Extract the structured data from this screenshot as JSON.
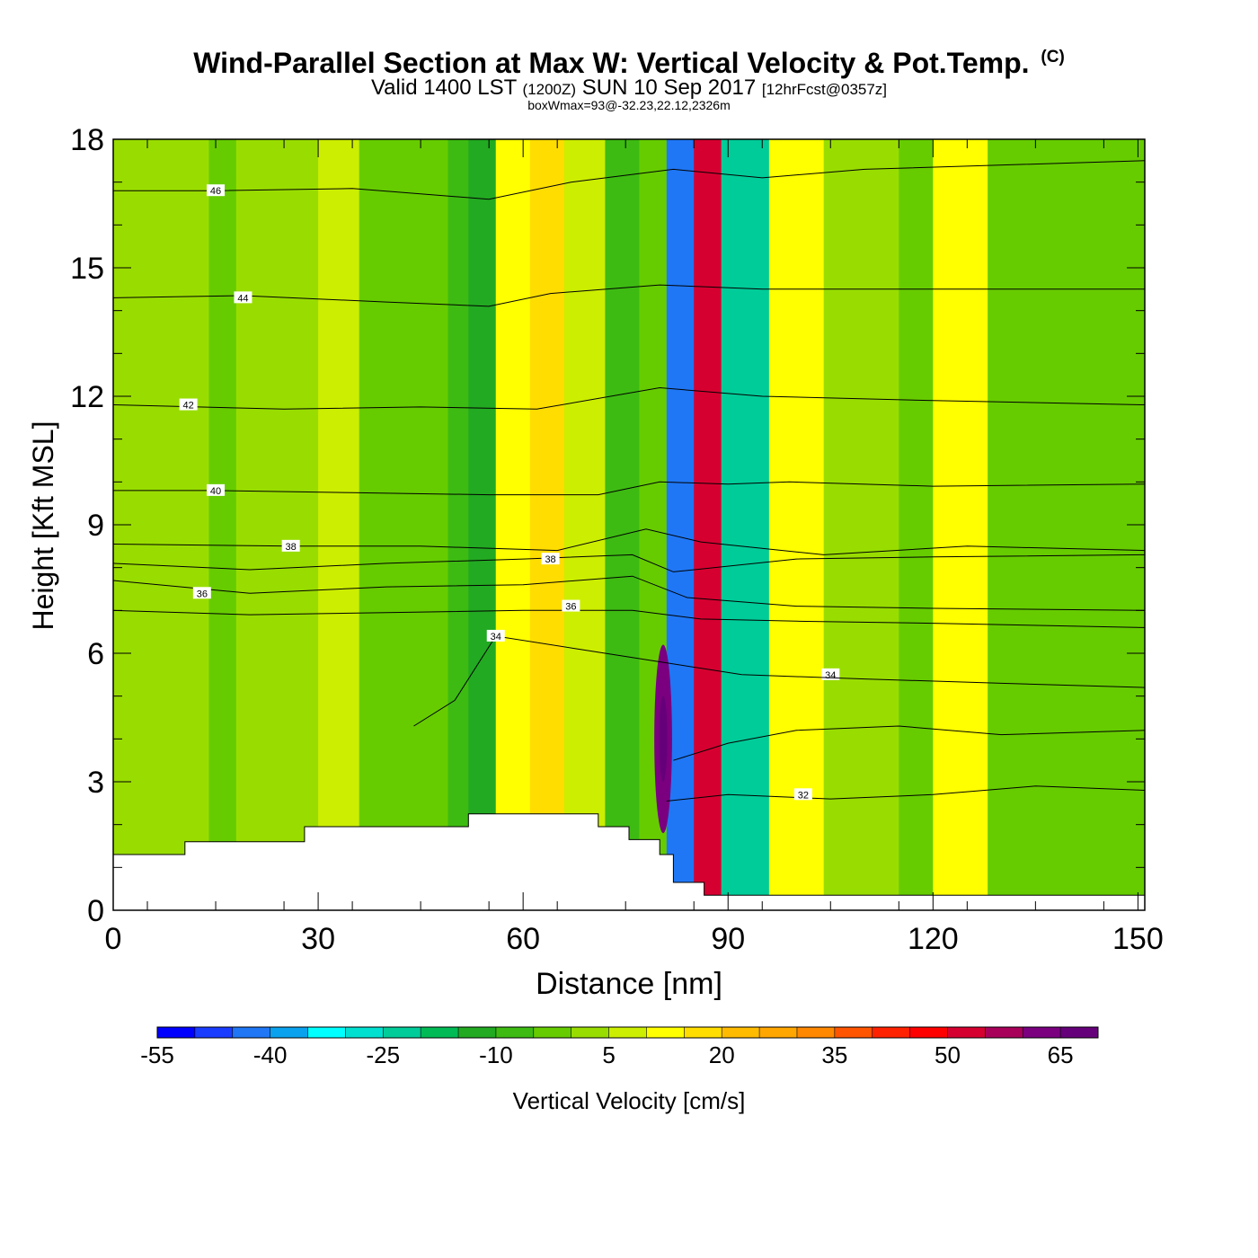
{
  "title": "Wind-Parallel Section at Max W: Vertical Velocity & Pot.Temp.",
  "copyright_mark": "(C)",
  "subtitle": {
    "valid": "Valid 1400 LST",
    "zulu": "(1200Z)",
    "date": "SUN 10 Sep 2017",
    "forecast": "[12hrFcst@0357z]"
  },
  "info_line": "boxWmax=93@-32.23,22.12,2326m",
  "chart_data": {
    "type": "heatmap",
    "xlabel": "Distance [nm]",
    "ylabel": "Height [Kft MSL]",
    "xlim": [
      0,
      151
    ],
    "ylim": [
      0,
      18
    ],
    "x_ticks": [
      "0",
      "30",
      "60",
      "90",
      "120",
      "150"
    ],
    "y_ticks": [
      "0",
      "3",
      "6",
      "9",
      "12",
      "15",
      "18"
    ],
    "x_tick_values": [
      0,
      30,
      60,
      90,
      120,
      150
    ],
    "y_tick_values": [
      0,
      3,
      6,
      9,
      12,
      15,
      18
    ],
    "terrain": [
      [
        0,
        1.3
      ],
      [
        10.5,
        1.3
      ],
      [
        10.5,
        1.6
      ],
      [
        28,
        1.6
      ],
      [
        28,
        1.95
      ],
      [
        52,
        1.95
      ],
      [
        52,
        2.25
      ],
      [
        71,
        2.25
      ],
      [
        71,
        1.95
      ],
      [
        75.5,
        1.95
      ],
      [
        75.5,
        1.65
      ],
      [
        80,
        1.65
      ],
      [
        80,
        1.3
      ],
      [
        82,
        1.3
      ],
      [
        82,
        0.65
      ],
      [
        86.5,
        0.65
      ],
      [
        86.5,
        0.35
      ],
      [
        151,
        0.35
      ]
    ],
    "field_bands": [
      {
        "x": [
          0,
          14
        ],
        "value": 0
      },
      {
        "x": [
          14,
          18
        ],
        "value": -5
      },
      {
        "x": [
          18,
          30
        ],
        "value": 2
      },
      {
        "x": [
          30,
          36
        ],
        "value": 8
      },
      {
        "x": [
          36,
          49
        ],
        "value": -3
      },
      {
        "x": [
          49,
          52
        ],
        "value": -10
      },
      {
        "x": [
          52,
          56
        ],
        "value": -15
      },
      {
        "x": [
          56,
          61
        ],
        "value": 10
      },
      {
        "x": [
          61,
          66
        ],
        "value": 18
      },
      {
        "x": [
          66,
          72
        ],
        "value": 9
      },
      {
        "x": [
          72,
          77
        ],
        "value": -10
      },
      {
        "x": [
          77,
          81
        ],
        "value": -2
      },
      {
        "x": [
          81,
          85
        ],
        "value": -45
      },
      {
        "x": [
          85,
          89
        ],
        "value": 50
      },
      {
        "x": [
          89,
          96
        ],
        "value": -22
      },
      {
        "x": [
          96,
          104
        ],
        "value": 12
      },
      {
        "x": [
          104,
          115
        ],
        "value": 0
      },
      {
        "x": [
          115,
          120
        ],
        "value": -5
      },
      {
        "x": [
          120,
          128
        ],
        "value": 10
      },
      {
        "x": [
          128,
          151
        ],
        "value": -3
      }
    ],
    "max_w": {
      "x": 80.5,
      "y": 4.0,
      "value": 93
    },
    "contour_series": [
      {
        "name": "32",
        "label_at": [
          101,
          2.7
        ],
        "points": [
          [
            81,
            2.55
          ],
          [
            90,
            2.7
          ],
          [
            105,
            2.6
          ],
          [
            120,
            2.7
          ],
          [
            135,
            2.9
          ],
          [
            151,
            2.8
          ]
        ]
      },
      {
        "name": "34",
        "label_at": [
          105,
          5.5
        ],
        "points": [
          [
            82,
            3.5
          ],
          [
            90,
            3.9
          ],
          [
            100,
            4.2
          ],
          [
            115,
            4.3
          ],
          [
            130,
            4.1
          ],
          [
            151,
            4.2
          ]
        ]
      },
      {
        "name": "34",
        "label_at": [
          56,
          6.4
        ],
        "points": [
          [
            44,
            4.3
          ],
          [
            50,
            4.9
          ],
          [
            56,
            6.4
          ],
          [
            68,
            6.1
          ],
          [
            80,
            5.8
          ],
          [
            92,
            5.5
          ],
          [
            110,
            5.4
          ],
          [
            130,
            5.3
          ],
          [
            151,
            5.2
          ]
        ]
      },
      {
        "name": "36",
        "label_at": [
          67,
          7.1
        ],
        "points": [
          [
            0,
            7.0
          ],
          [
            20,
            6.9
          ],
          [
            40,
            6.95
          ],
          [
            60,
            7.0
          ],
          [
            76,
            7.0
          ],
          [
            86,
            6.8
          ],
          [
            100,
            6.75
          ],
          [
            120,
            6.7
          ],
          [
            151,
            6.6
          ]
        ]
      },
      {
        "name": "36",
        "label_at": [
          13,
          7.4
        ],
        "points": [
          [
            0,
            7.7
          ],
          [
            20,
            7.4
          ],
          [
            40,
            7.55
          ],
          [
            60,
            7.6
          ],
          [
            76,
            7.8
          ],
          [
            84,
            7.3
          ],
          [
            100,
            7.1
          ],
          [
            120,
            7.05
          ],
          [
            151,
            7.0
          ]
        ]
      },
      {
        "name": "38",
        "label_at": [
          64,
          8.2
        ],
        "points": [
          [
            0,
            8.1
          ],
          [
            20,
            7.95
          ],
          [
            40,
            8.1
          ],
          [
            60,
            8.2
          ],
          [
            76,
            8.3
          ],
          [
            82,
            7.9
          ],
          [
            100,
            8.2
          ],
          [
            120,
            8.25
          ],
          [
            151,
            8.3
          ]
        ]
      },
      {
        "name": "38",
        "label_at": [
          26,
          8.5
        ],
        "points": [
          [
            0,
            8.55
          ],
          [
            26,
            8.5
          ],
          [
            45,
            8.5
          ],
          [
            65,
            8.4
          ],
          [
            78,
            8.9
          ],
          [
            86,
            8.6
          ],
          [
            104,
            8.3
          ],
          [
            125,
            8.5
          ],
          [
            151,
            8.4
          ]
        ]
      },
      {
        "name": "40",
        "label_at": [
          15,
          9.8
        ],
        "points": [
          [
            0,
            9.8
          ],
          [
            15,
            9.8
          ],
          [
            35,
            9.75
          ],
          [
            55,
            9.7
          ],
          [
            71,
            9.7
          ],
          [
            80,
            10.0
          ],
          [
            90,
            9.95
          ],
          [
            99,
            10.0
          ],
          [
            120,
            9.9
          ],
          [
            151,
            9.95
          ]
        ]
      },
      {
        "name": "42",
        "label_at": [
          11,
          11.8
        ],
        "points": [
          [
            0,
            11.8
          ],
          [
            25,
            11.7
          ],
          [
            45,
            11.75
          ],
          [
            62,
            11.7
          ],
          [
            80,
            12.2
          ],
          [
            95,
            12.0
          ],
          [
            120,
            11.9
          ],
          [
            151,
            11.8
          ]
        ]
      },
      {
        "name": "44",
        "label_at": [
          19,
          14.3
        ],
        "points": [
          [
            0,
            14.3
          ],
          [
            19,
            14.35
          ],
          [
            40,
            14.2
          ],
          [
            55,
            14.1
          ],
          [
            64,
            14.4
          ],
          [
            80,
            14.6
          ],
          [
            95,
            14.5
          ],
          [
            112,
            14.5
          ],
          [
            151,
            14.5
          ]
        ]
      },
      {
        "name": "46",
        "label_at": [
          15,
          16.8
        ],
        "points": [
          [
            0,
            16.8
          ],
          [
            15,
            16.8
          ],
          [
            35,
            16.85
          ],
          [
            55,
            16.6
          ],
          [
            67,
            17.0
          ],
          [
            82,
            17.3
          ],
          [
            95,
            17.1
          ],
          [
            110,
            17.3
          ],
          [
            151,
            17.5
          ]
        ]
      }
    ],
    "colorbar": {
      "label": "Vertical Velocity [cm/s]",
      "min": -55,
      "max": 70,
      "step": 5,
      "tick_labels": [
        "-55",
        "-40",
        "-25",
        "-10",
        "5",
        "20",
        "35",
        "50",
        "65"
      ],
      "tick_values": [
        -55,
        -40,
        -25,
        -10,
        5,
        20,
        35,
        50,
        65
      ],
      "colors": [
        "#0000ff",
        "#1a3cff",
        "#1f77f5",
        "#0aa2ee",
        "#00ffff",
        "#00e0d0",
        "#00cc99",
        "#00bb55",
        "#22aa22",
        "#3dbb12",
        "#66cc00",
        "#99dd00",
        "#ccee00",
        "#ffff00",
        "#ffdd00",
        "#ffbb00",
        "#ffa600",
        "#ff8800",
        "#ff5500",
        "#ff2200",
        "#ff0000",
        "#d60030",
        "#a8005a",
        "#7a0080",
        "#66007a"
      ]
    }
  }
}
